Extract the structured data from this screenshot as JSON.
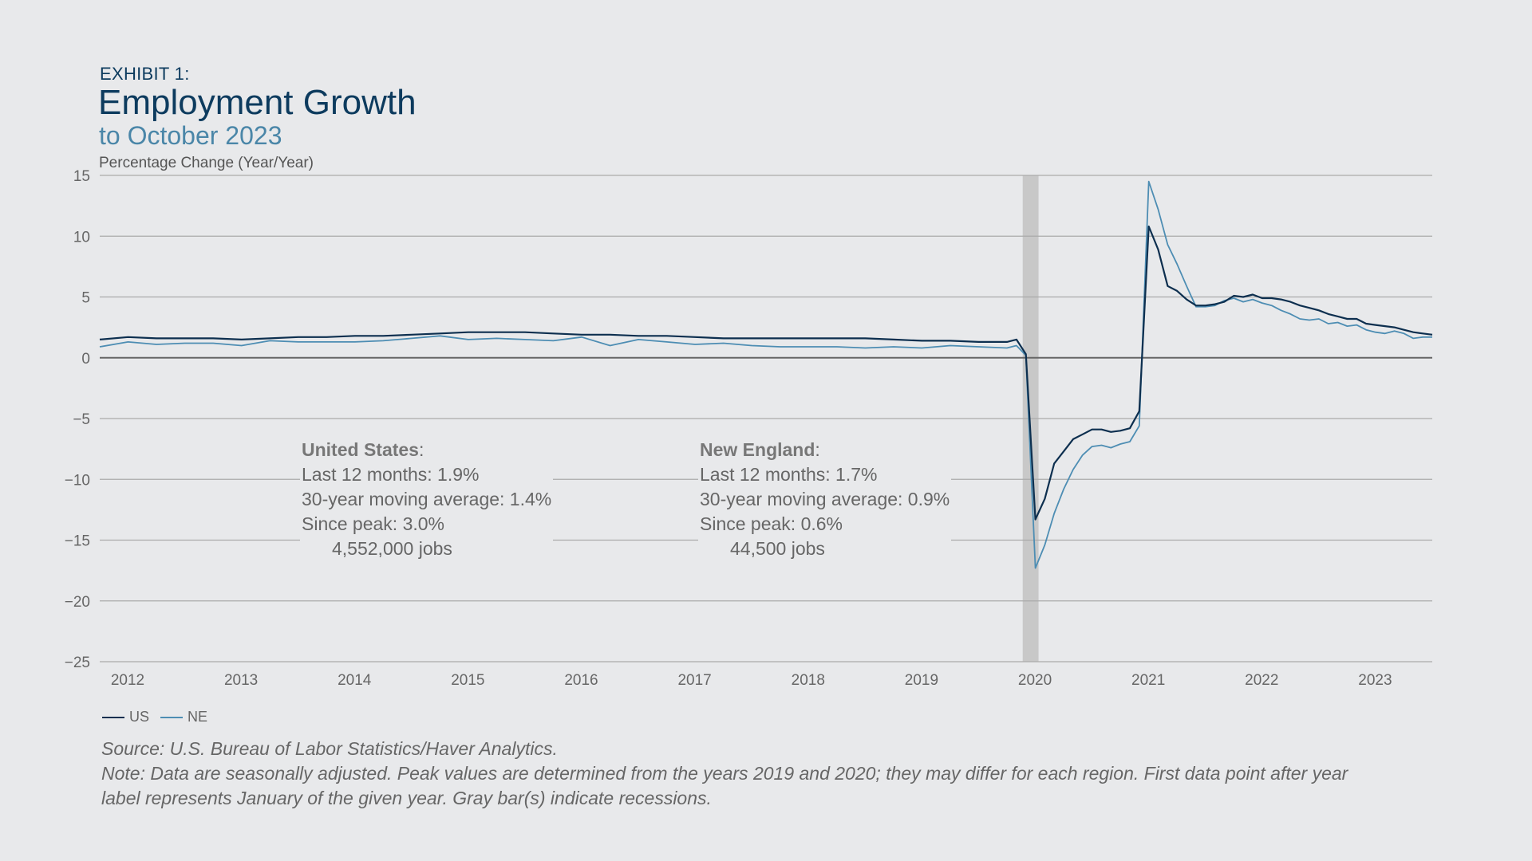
{
  "header": {
    "exhibit": "EXHIBIT 1:",
    "title": "Employment Growth",
    "subtitle": "to October 2023"
  },
  "colors": {
    "us": "#0d2f4f",
    "ne": "#4d8db3",
    "recession": "#c8c8c8",
    "grid": "#aaaaaa",
    "zero": "#666666"
  },
  "annotations": {
    "us": {
      "name": "United States",
      "last12": "Last 12 months:  1.9%",
      "avg30": "30-year moving average: 1.4%",
      "since_peak": "Since peak: 3.0%",
      "jobs": "4,552,000 jobs"
    },
    "ne": {
      "name": "New England",
      "last12": "Last 12 months:  1.7%",
      "avg30": "30-year moving average: 0.9%",
      "since_peak": "Since peak: 0.6%",
      "jobs": "44,500 jobs"
    }
  },
  "legend": {
    "us": "US",
    "ne": "NE"
  },
  "source": "Source: U.S. Bureau of Labor Statistics/Haver Analytics.",
  "note_line1": "Note: Data are seasonally adjusted. Peak values are determined from the years 2019 and 2020; they may differ for each region. First data point after year",
  "note_line2": "label represents January of the given year. Gray bar(s) indicate recessions.",
  "chart_data": {
    "type": "line",
    "title": "Employment Growth",
    "subtitle": "to October 2023",
    "ylabel": "Percentage Change (Year/Year)",
    "ylim": [
      -25,
      15
    ],
    "yticks": [
      15,
      10,
      5,
      0,
      -5,
      -10,
      -15,
      -20,
      -25
    ],
    "ytick_labels": [
      "15",
      "10",
      "5",
      "0",
      "−5",
      "−10",
      "−15",
      "−20",
      "−25"
    ],
    "xticks": [
      "2012",
      "2013",
      "2014",
      "2015",
      "2016",
      "2017",
      "2018",
      "2019",
      "2020",
      "2021",
      "2022",
      "2023"
    ],
    "x_start": "2012-01",
    "x_end": "2023-10",
    "grid": true,
    "legend_position": "bottom-left",
    "recessions": [
      {
        "start": "2020-03",
        "end": "2020-04"
      }
    ],
    "series": [
      {
        "name": "US",
        "x": [
          "2012-01",
          "2012-04",
          "2012-07",
          "2012-10",
          "2013-01",
          "2013-04",
          "2013-07",
          "2013-10",
          "2014-01",
          "2014-04",
          "2014-07",
          "2014-10",
          "2015-01",
          "2015-04",
          "2015-07",
          "2015-10",
          "2016-01",
          "2016-04",
          "2016-07",
          "2016-10",
          "2017-01",
          "2017-04",
          "2017-07",
          "2017-10",
          "2018-01",
          "2018-04",
          "2018-07",
          "2018-10",
          "2019-01",
          "2019-04",
          "2019-07",
          "2019-10",
          "2020-01",
          "2020-02",
          "2020-03",
          "2020-04",
          "2020-05",
          "2020-06",
          "2020-07",
          "2020-08",
          "2020-09",
          "2020-10",
          "2020-11",
          "2020-12",
          "2021-01",
          "2021-02",
          "2021-03",
          "2021-04",
          "2021-05",
          "2021-06",
          "2021-07",
          "2021-08",
          "2021-09",
          "2021-10",
          "2021-11",
          "2021-12",
          "2022-01",
          "2022-02",
          "2022-03",
          "2022-04",
          "2022-05",
          "2022-06",
          "2022-07",
          "2022-08",
          "2022-09",
          "2022-10",
          "2022-11",
          "2022-12",
          "2023-01",
          "2023-02",
          "2023-03",
          "2023-04",
          "2023-05",
          "2023-06",
          "2023-07",
          "2023-08",
          "2023-09",
          "2023-10"
        ],
        "values": [
          1.5,
          1.7,
          1.6,
          1.6,
          1.6,
          1.5,
          1.6,
          1.7,
          1.7,
          1.8,
          1.8,
          1.9,
          2.0,
          2.1,
          2.1,
          2.1,
          2.0,
          1.9,
          1.9,
          1.8,
          1.8,
          1.7,
          1.6,
          1.6,
          1.6,
          1.6,
          1.6,
          1.6,
          1.5,
          1.4,
          1.4,
          1.3,
          1.3,
          1.5,
          0.3,
          -13.3,
          -11.6,
          -8.7,
          -7.7,
          -6.7,
          -6.3,
          -5.9,
          -5.9,
          -6.1,
          -6.0,
          -5.8,
          -4.4,
          10.8,
          8.9,
          5.9,
          5.5,
          4.8,
          4.3,
          4.3,
          4.4,
          4.6,
          5.1,
          5.0,
          5.2,
          4.9,
          4.9,
          4.8,
          4.6,
          4.3,
          4.1,
          3.9,
          3.6,
          3.4,
          3.2,
          3.2,
          2.8,
          2.7,
          2.6,
          2.5,
          2.3,
          2.1,
          2.0,
          1.9
        ]
      },
      {
        "name": "NE",
        "x": [
          "2012-01",
          "2012-04",
          "2012-07",
          "2012-10",
          "2013-01",
          "2013-04",
          "2013-07",
          "2013-10",
          "2014-01",
          "2014-04",
          "2014-07",
          "2014-10",
          "2015-01",
          "2015-04",
          "2015-07",
          "2015-10",
          "2016-01",
          "2016-04",
          "2016-07",
          "2016-10",
          "2017-01",
          "2017-04",
          "2017-07",
          "2017-10",
          "2018-01",
          "2018-04",
          "2018-07",
          "2018-10",
          "2019-01",
          "2019-04",
          "2019-07",
          "2019-10",
          "2020-01",
          "2020-02",
          "2020-03",
          "2020-04",
          "2020-05",
          "2020-06",
          "2020-07",
          "2020-08",
          "2020-09",
          "2020-10",
          "2020-11",
          "2020-12",
          "2021-01",
          "2021-02",
          "2021-03",
          "2021-04",
          "2021-05",
          "2021-06",
          "2021-07",
          "2021-08",
          "2021-09",
          "2021-10",
          "2021-11",
          "2021-12",
          "2022-01",
          "2022-02",
          "2022-03",
          "2022-04",
          "2022-05",
          "2022-06",
          "2022-07",
          "2022-08",
          "2022-09",
          "2022-10",
          "2022-11",
          "2022-12",
          "2023-01",
          "2023-02",
          "2023-03",
          "2023-04",
          "2023-05",
          "2023-06",
          "2023-07",
          "2023-08",
          "2023-09",
          "2023-10"
        ],
        "values": [
          0.9,
          1.3,
          1.1,
          1.2,
          1.2,
          1.0,
          1.4,
          1.3,
          1.3,
          1.3,
          1.4,
          1.6,
          1.8,
          1.5,
          1.6,
          1.5,
          1.4,
          1.7,
          1.0,
          1.5,
          1.3,
          1.1,
          1.2,
          1.0,
          0.9,
          0.9,
          0.9,
          0.8,
          0.9,
          0.8,
          1.0,
          0.9,
          0.8,
          1.0,
          0.2,
          -17.3,
          -15.4,
          -12.8,
          -10.8,
          -9.2,
          -8.0,
          -7.3,
          -7.2,
          -7.4,
          -7.1,
          -6.9,
          -5.6,
          14.5,
          12.2,
          9.3,
          7.7,
          5.9,
          4.2,
          4.2,
          4.3,
          4.7,
          4.9,
          4.6,
          4.8,
          4.5,
          4.3,
          3.9,
          3.6,
          3.2,
          3.1,
          3.2,
          2.8,
          2.9,
          2.6,
          2.7,
          2.3,
          2.1,
          2.0,
          2.2,
          2.0,
          1.6,
          1.7,
          1.7
        ]
      }
    ]
  }
}
